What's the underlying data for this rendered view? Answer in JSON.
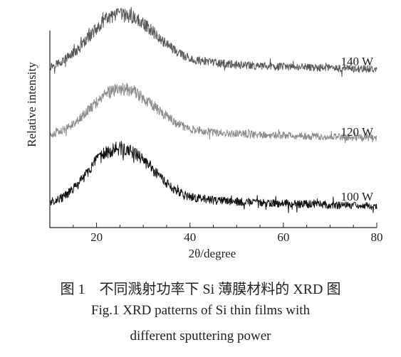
{
  "chart_data": {
    "type": "line",
    "xlabel": "2θ/degree",
    "ylabel": "Relative intensity",
    "xlim": [
      10,
      80
    ],
    "x_ticks": [
      20,
      40,
      60,
      80
    ],
    "x_tick_labels": [
      "20",
      "40",
      "60",
      "80"
    ],
    "y_ticks_shown": false,
    "grid": false,
    "legend": "none",
    "x_profile": [
      10,
      13,
      16,
      19,
      22,
      25,
      28,
      31,
      34,
      37,
      40,
      45,
      50,
      55,
      60,
      65,
      70,
      75,
      80
    ],
    "series": [
      {
        "name": "140 W",
        "color": "#555555",
        "relative_intensity": [
          0.18,
          0.28,
          0.45,
          0.7,
          0.92,
          1.0,
          0.95,
          0.8,
          0.6,
          0.42,
          0.3,
          0.24,
          0.21,
          0.19,
          0.18,
          0.17,
          0.16,
          0.15,
          0.14
        ]
      },
      {
        "name": "120 W",
        "color": "#8c8c8c",
        "relative_intensity": [
          0.18,
          0.26,
          0.42,
          0.65,
          0.86,
          0.95,
          0.9,
          0.74,
          0.55,
          0.38,
          0.28,
          0.22,
          0.2,
          0.18,
          0.17,
          0.16,
          0.15,
          0.14,
          0.13
        ]
      },
      {
        "name": "100 W",
        "color": "#111111",
        "relative_intensity": [
          0.17,
          0.25,
          0.44,
          0.72,
          0.94,
          1.0,
          0.93,
          0.75,
          0.52,
          0.34,
          0.25,
          0.2,
          0.18,
          0.16,
          0.15,
          0.14,
          0.13,
          0.12,
          0.11
        ]
      }
    ]
  },
  "caption": {
    "line1": "图 1　不同溅射功率下 Si 薄膜材料的 XRD 图",
    "line2": "Fig.1 XRD patterns of Si thin films with",
    "line3": "different sputtering power"
  }
}
